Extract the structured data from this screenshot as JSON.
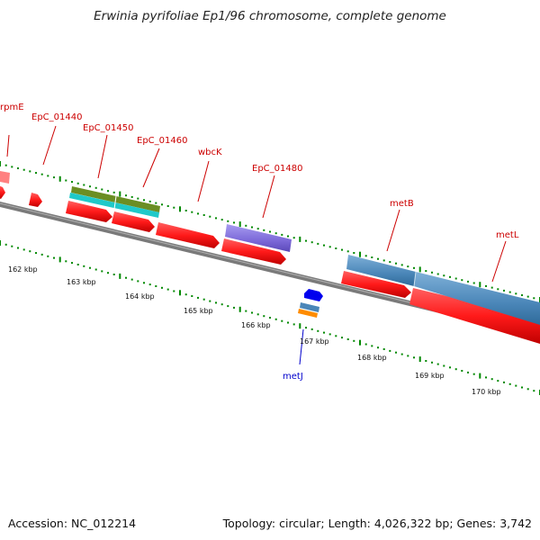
{
  "title": "Erwinia pyrifoliae Ep1/96 chromosome, complete genome",
  "footer": {
    "accession_label": "Accession:",
    "accession": "NC_012214",
    "topology_text": "Topology: circular; Length: 4,026,322 bp; Genes: 3,742"
  },
  "colors": {
    "forward_cds": "#ff1a1a",
    "backbone": "#7a7a7a",
    "label_red": "#cc0000",
    "label_blue": "#0000cc",
    "ticks": "#008800",
    "blast_blue": "#4a86b8",
    "olive": "#6b8e23",
    "cyan": "#1fc9c9",
    "purple": "#7b68d8",
    "orange": "#ff8c00",
    "pink": "#ff8080",
    "blue_cds": "#0000ee"
  },
  "scale_labels": [
    "162 kbp",
    "163 kbp",
    "164 kbp",
    "165 kbp",
    "166 kbp",
    "167 kbp",
    "168 kbp",
    "169 kbp",
    "170 kbp"
  ],
  "gene_labels": [
    {
      "text": "rpmE",
      "color": "red"
    },
    {
      "text": "EpC_01440",
      "color": "red"
    },
    {
      "text": "EpC_01450",
      "color": "red"
    },
    {
      "text": "EpC_01460",
      "color": "red"
    },
    {
      "text": "wbcK",
      "color": "red"
    },
    {
      "text": "EpC_01480",
      "color": "red"
    },
    {
      "text": "metB",
      "color": "red"
    },
    {
      "text": "metL",
      "color": "red"
    },
    {
      "text": "metJ",
      "color": "blue"
    }
  ]
}
